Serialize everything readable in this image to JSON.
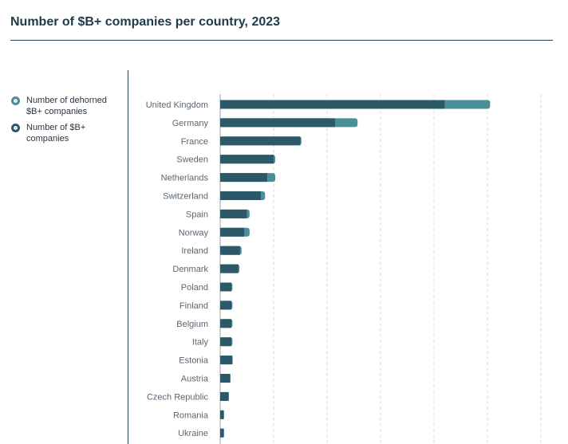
{
  "title": "Number of $B+ companies per country, 2023",
  "legend": {
    "dehorned": "Number of dehorned $B+ companies",
    "total": "Number of $B+ companies"
  },
  "colors": {
    "total": "#2d5868",
    "dehorned": "#4a8f98",
    "grid": "#d9dde0",
    "axis": "#9aa3aa"
  },
  "chart_data": {
    "type": "bar",
    "orientation": "horizontal",
    "categories": [
      "United Kingdom",
      "Germany",
      "France",
      "Sweden",
      "Netherlands",
      "Switzerland",
      "Spain",
      "Norway",
      "Ireland",
      "Denmark",
      "Poland",
      "Finland",
      "Belgium",
      "Italy",
      "Estonia",
      "Austria",
      "Czech Republic",
      "Romania",
      "Ukraine"
    ],
    "series": [
      {
        "name": "Number of $B+ companies",
        "values": [
          42,
          21.5,
          15,
          10,
          8.8,
          7.6,
          5,
          4.5,
          3.7,
          3.4,
          2.1,
          2.1,
          2.1,
          2.1,
          2.3,
          1.9,
          1.6,
          0.7,
          0.7
        ]
      },
      {
        "name": "Number of dehorned $B+ companies",
        "values": [
          50.5,
          25.7,
          15.2,
          10.3,
          10.3,
          8.4,
          5.5,
          5.5,
          4.0,
          3.6,
          2.3,
          2.3,
          2.3,
          2.3,
          2.3,
          1.9,
          1.6,
          0.7,
          0.7
        ]
      }
    ],
    "xlim": [
      0,
      60
    ],
    "grid": true,
    "legend_position": "left"
  }
}
